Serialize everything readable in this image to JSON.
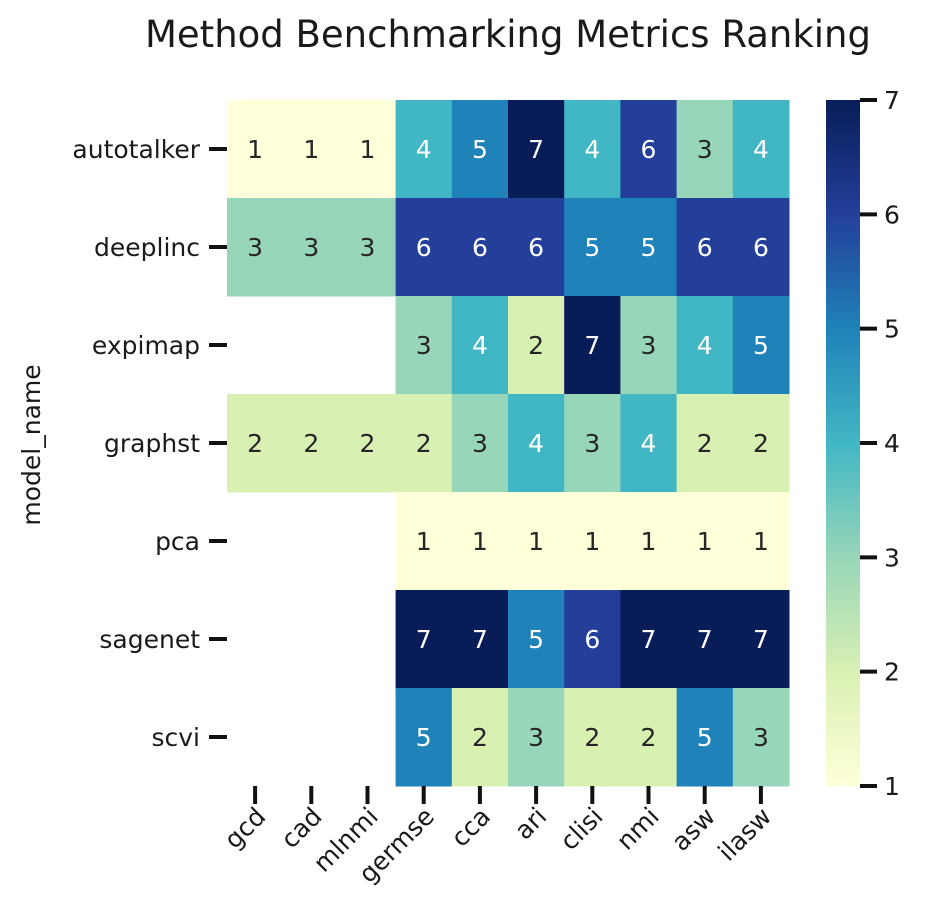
{
  "chart_data": {
    "type": "heatmap",
    "title": "Method Benchmarking Metrics Ranking",
    "xlabel": "",
    "ylabel": "model_name",
    "x": [
      "gcd",
      "cad",
      "mlnmi",
      "germse",
      "cca",
      "ari",
      "clisi",
      "nmi",
      "asw",
      "ilasw"
    ],
    "y": [
      "autotalker",
      "deeplinc",
      "expimap",
      "graphst",
      "pca",
      "sagenet",
      "scvi"
    ],
    "values": [
      [
        1,
        1,
        1,
        4,
        5,
        7,
        4,
        6,
        3,
        4
      ],
      [
        3,
        3,
        3,
        6,
        6,
        6,
        5,
        5,
        6,
        6
      ],
      [
        null,
        null,
        null,
        3,
        4,
        2,
        7,
        3,
        4,
        5
      ],
      [
        2,
        2,
        2,
        2,
        3,
        4,
        3,
        4,
        2,
        2
      ],
      [
        null,
        null,
        null,
        1,
        1,
        1,
        1,
        1,
        1,
        1
      ],
      [
        null,
        null,
        null,
        7,
        7,
        5,
        6,
        7,
        7,
        7
      ],
      [
        null,
        null,
        null,
        5,
        2,
        3,
        2,
        2,
        5,
        3
      ]
    ],
    "colorbar": {
      "range": [
        1,
        7
      ],
      "ticks": [
        "1",
        "2",
        "3",
        "4",
        "5",
        "6",
        "7"
      ]
    },
    "colormap": "YlGnBu",
    "palette": {
      "1": "#ffffd9",
      "2": "#d9f0b3",
      "3": "#97d6b9",
      "4": "#41b6c4",
      "5": "#1f82b8",
      "6": "#233f9a",
      "7": "#081d58"
    },
    "annotated": true,
    "grid": false
  }
}
